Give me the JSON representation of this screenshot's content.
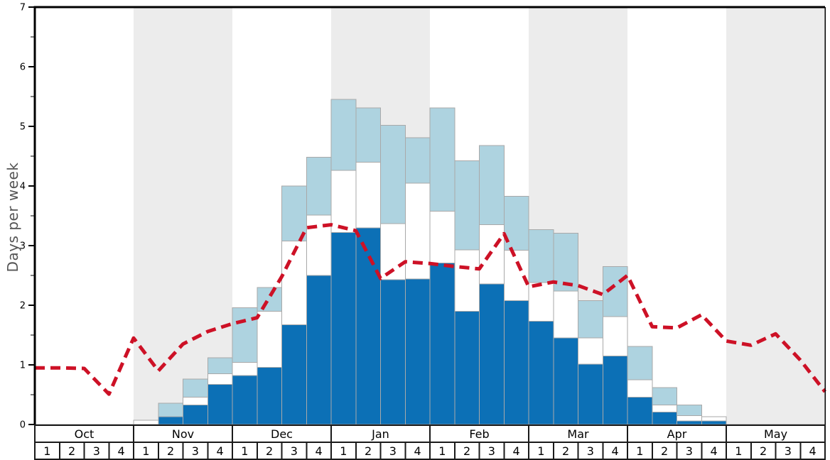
{
  "chart_data": {
    "type": "bar",
    "subtype": "stacked-bars-with-dashed-line",
    "title": "",
    "xlabel": "",
    "ylabel": "Days per week",
    "ylim": [
      0,
      7
    ],
    "y_major_ticks": [
      0,
      1,
      2,
      3,
      4,
      5,
      6,
      7
    ],
    "y_minor_tick_step": 0.5,
    "grid": "off",
    "legend_position": "none",
    "months": [
      "Oct",
      "Nov",
      "Dec",
      "Jan",
      "Feb",
      "Mar",
      "Apr",
      "May"
    ],
    "shaded_months": [
      "Nov",
      "Jan",
      "Mar",
      "May"
    ],
    "week_labels": [
      "1",
      "2",
      "3",
      "4"
    ],
    "weeks_per_month": 4,
    "categories": [
      "Oct-1",
      "Oct-2",
      "Oct-3",
      "Oct-4",
      "Nov-1",
      "Nov-2",
      "Nov-3",
      "Nov-4",
      "Dec-1",
      "Dec-2",
      "Dec-3",
      "Dec-4",
      "Jan-1",
      "Jan-2",
      "Jan-3",
      "Jan-4",
      "Feb-1",
      "Feb-2",
      "Feb-3",
      "Feb-4",
      "Mar-1",
      "Mar-2",
      "Mar-3",
      "Mar-4",
      "Apr-1",
      "Apr-2",
      "Apr-3",
      "Apr-4",
      "May-1",
      "May-2",
      "May-3",
      "May-4"
    ],
    "stacked_series": [
      {
        "name": "dark-blue-days",
        "color": "#0c70b6",
        "cumulative_tops": [
          0,
          0,
          0,
          0,
          0,
          0.13,
          0.33,
          0.67,
          0.82,
          0.96,
          1.67,
          2.5,
          3.22,
          3.3,
          2.43,
          2.44,
          2.71,
          1.9,
          2.36,
          2.08,
          1.73,
          1.45,
          1.01,
          1.15,
          0.46,
          0.21,
          0.06,
          0.06,
          0,
          0,
          0,
          0
        ]
      },
      {
        "name": "white-days",
        "color": "#ffffff",
        "cumulative_tops": [
          0,
          0,
          0,
          0,
          0.07,
          0.13,
          0.46,
          0.85,
          1.04,
          1.9,
          3.08,
          3.51,
          4.26,
          4.4,
          3.37,
          4.05,
          3.58,
          2.93,
          3.35,
          2.92,
          2.38,
          2.24,
          1.45,
          1.81,
          0.75,
          0.33,
          0.15,
          0.13,
          0,
          0,
          0,
          0
        ]
      },
      {
        "name": "light-blue-days",
        "color": "#aed3e0",
        "cumulative_tops": [
          0,
          0,
          0,
          0,
          0.07,
          0.36,
          0.76,
          1.12,
          1.96,
          2.3,
          4.0,
          4.48,
          5.45,
          5.31,
          5.02,
          4.81,
          5.31,
          4.42,
          4.68,
          3.83,
          3.27,
          3.21,
          2.08,
          2.65,
          1.31,
          0.62,
          0.33,
          0.13,
          0,
          0,
          0,
          0
        ]
      }
    ],
    "dashed_line": {
      "name": "red-dashed-line",
      "color": "#cd1126",
      "style": "dashed",
      "points_at_week_boundaries": [
        0.95,
        0.95,
        0.94,
        0.51,
        1.45,
        0.9,
        1.35,
        1.56,
        1.69,
        1.79,
        2.48,
        3.3,
        3.35,
        3.25,
        2.45,
        2.73,
        2.7,
        2.65,
        2.61,
        3.2,
        2.31,
        2.39,
        2.33,
        2.18,
        2.5,
        1.64,
        1.62,
        1.84,
        1.4,
        1.33,
        1.52,
        1.08,
        0.55
      ]
    },
    "colors": {
      "shaded_month_band": "#ececec",
      "plot_background": "#ffffff",
      "bar_border": "#a9a9a9",
      "axis_spine": "#000000",
      "zero_line": "#999999",
      "table_border": "#1a1a1a",
      "tick_label": "#000000",
      "axis_title": "#555555"
    }
  }
}
